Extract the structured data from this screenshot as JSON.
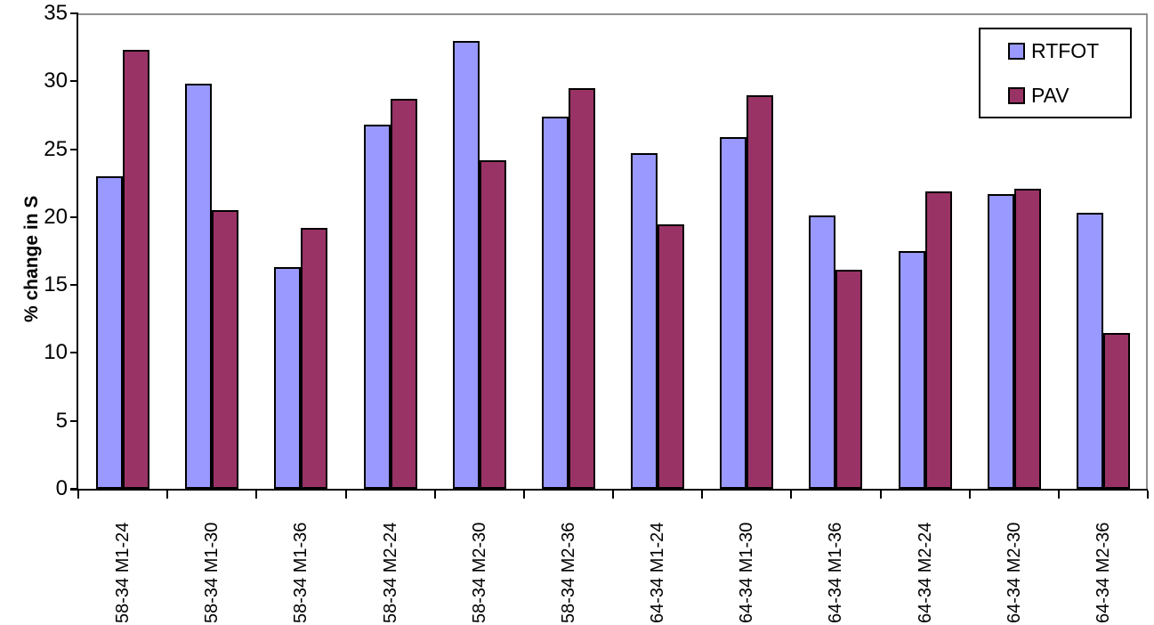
{
  "chart_data": {
    "type": "bar",
    "title": "",
    "xlabel": "",
    "ylabel": "% change in S",
    "ylim": [
      0,
      35
    ],
    "ytick_step": 5,
    "yticks": [
      0,
      5,
      10,
      15,
      20,
      25,
      30,
      35
    ],
    "grid": false,
    "legend_position": "top-right",
    "categories": [
      "58-34 M1-24",
      "58-34 M1-30",
      "58-34 M1-36",
      "58-34 M2-24",
      "58-34 M2-30",
      "58-34 M2-36",
      "64-34 M1-24",
      "64-34 M1-30",
      "64-34 M1-36",
      "64-34 M2-24",
      "64-34 M2-30",
      "64-34 M2-36"
    ],
    "series": [
      {
        "name": "RTFOT",
        "color": "#9999FF",
        "values": [
          23.0,
          29.8,
          16.3,
          26.8,
          33.0,
          27.4,
          24.7,
          25.9,
          20.1,
          17.5,
          21.7,
          20.3
        ]
      },
      {
        "name": "PAV",
        "color": "#993366",
        "values": [
          32.3,
          20.5,
          19.2,
          28.7,
          24.2,
          29.5,
          19.5,
          29.0,
          16.1,
          21.9,
          22.1,
          11.5
        ]
      }
    ]
  },
  "colors": {
    "background": "#FFFFFF",
    "bar_border": "#000000",
    "axis": "#000000",
    "plot_border": "#909090"
  }
}
